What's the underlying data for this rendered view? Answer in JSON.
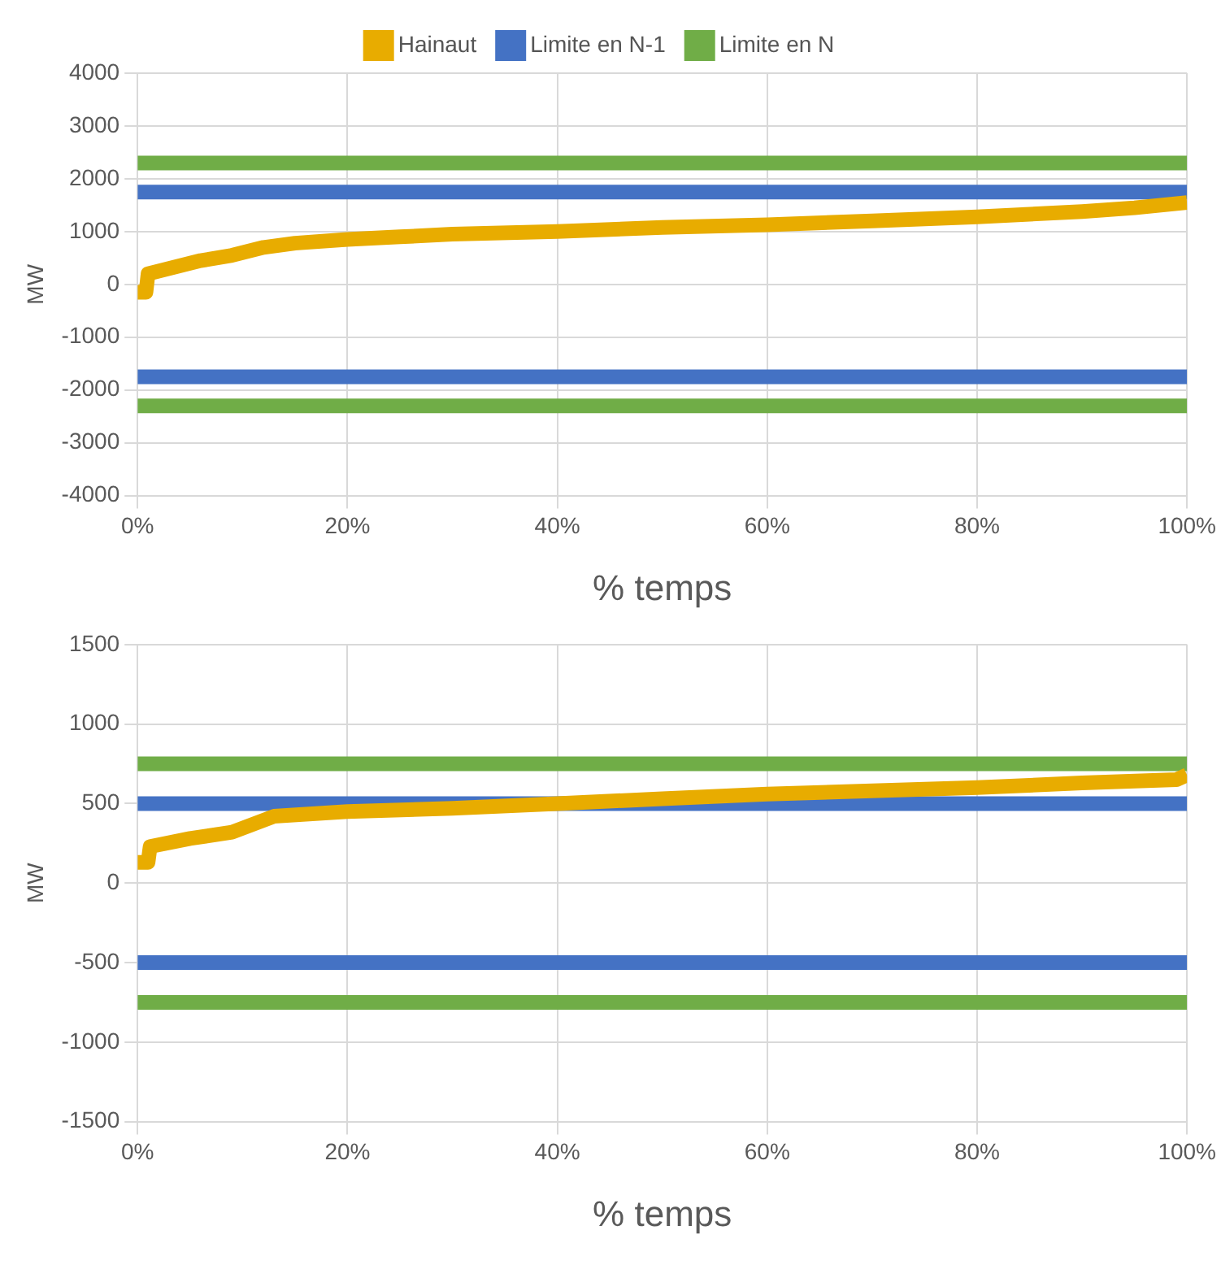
{
  "chart_data": [
    {
      "type": "line",
      "xlabel": "% temps",
      "ylabel": "MW",
      "legend": "top",
      "grid": true,
      "marker": "none",
      "line_style": "solid",
      "xlim": [
        0,
        100
      ],
      "xticks": [
        {
          "value": 0,
          "label": "0%"
        },
        {
          "value": 20,
          "label": "20%"
        },
        {
          "value": 40,
          "label": "40%"
        },
        {
          "value": 60,
          "label": "60%"
        },
        {
          "value": 80,
          "label": "80%"
        },
        {
          "value": 100,
          "label": "100%"
        }
      ],
      "ylim": [
        -4000,
        4000
      ],
      "yticks": [
        -4000,
        -3000,
        -2000,
        -1000,
        0,
        1000,
        2000,
        3000,
        4000
      ],
      "series": [
        {
          "name": "Hainaut",
          "color": "#e8ac00",
          "x": [
            0,
            0.8,
            1,
            3,
            6,
            9,
            12,
            15,
            20,
            25,
            30,
            40,
            50,
            60,
            70,
            80,
            90,
            95,
            100
          ],
          "values": [
            -150,
            -150,
            200,
            300,
            450,
            550,
            700,
            780,
            850,
            900,
            950,
            1000,
            1080,
            1130,
            1200,
            1280,
            1380,
            1450,
            1550
          ]
        },
        {
          "name": "Limite en N-1",
          "color": "#4472c4",
          "x": [
            0,
            100
          ],
          "values": [
            1750,
            1750
          ]
        },
        {
          "color": "#4472c4",
          "x": [
            0,
            100
          ],
          "values": [
            -1750,
            -1750
          ]
        },
        {
          "name": "Limite en N",
          "color": "#70ad47",
          "x": [
            0,
            100
          ],
          "values": [
            2300,
            2300
          ]
        },
        {
          "color": "#70ad47",
          "x": [
            0,
            100
          ],
          "values": [
            -2300,
            -2300
          ]
        }
      ]
    },
    {
      "type": "line",
      "xlabel": "% temps",
      "ylabel": "MW",
      "grid": true,
      "marker": "none",
      "line_style": "solid",
      "xlim": [
        0,
        100
      ],
      "xticks": [
        {
          "value": 0,
          "label": "0%"
        },
        {
          "value": 20,
          "label": "20%"
        },
        {
          "value": 40,
          "label": "40%"
        },
        {
          "value": 60,
          "label": "60%"
        },
        {
          "value": 80,
          "label": "80%"
        },
        {
          "value": 100,
          "label": "100%"
        }
      ],
      "ylim": [
        -1500,
        1500
      ],
      "yticks": [
        -1500,
        -1000,
        -500,
        0,
        500,
        1000,
        1500
      ],
      "series": [
        {
          "color": "#e8ac00",
          "x": [
            0,
            1,
            1.2,
            5,
            9,
            11,
            13,
            20,
            30,
            40,
            50,
            60,
            70,
            80,
            90,
            99,
            100
          ],
          "values": [
            130,
            130,
            230,
            280,
            320,
            370,
            420,
            450,
            470,
            500,
            530,
            560,
            580,
            600,
            630,
            650,
            680
          ]
        },
        {
          "color": "#70ad47",
          "x": [
            0,
            100
          ],
          "values": [
            750,
            750
          ]
        },
        {
          "color": "#70ad47",
          "x": [
            0,
            100
          ],
          "values": [
            -750,
            -750
          ]
        },
        {
          "color": "#4472c4",
          "x": [
            0,
            100
          ],
          "values": [
            500,
            500
          ]
        },
        {
          "color": "#4472c4",
          "x": [
            0,
            100
          ],
          "values": [
            -500,
            -500
          ]
        }
      ]
    }
  ]
}
